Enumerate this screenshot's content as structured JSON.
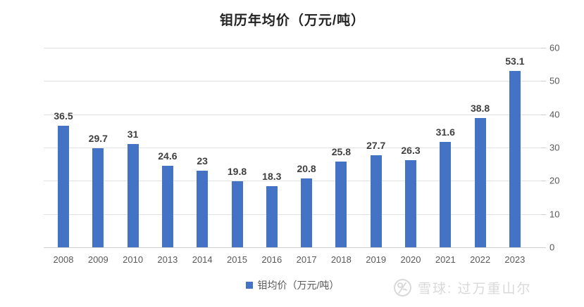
{
  "chart": {
    "title": "钼历年均价（万元/吨）",
    "legend_label": "钼均价（万元/吨）",
    "bar_color": "#4472C4",
    "gridline_color": "#e2e2e2",
    "axis_label_color": "#595959",
    "value_label_color": "#3f3f3f"
  },
  "watermark": {
    "text": "雪球: 过万重山尔",
    "logo": "xueqiu-snowball-logo"
  },
  "chart_data": {
    "type": "bar",
    "title": "钼历年均价（万元/吨）",
    "categories": [
      "2008",
      "2009",
      "2010",
      "2013",
      "2014",
      "2015",
      "2016",
      "2017",
      "2018",
      "2019",
      "2020",
      "2021",
      "2022",
      "2023"
    ],
    "values": [
      36.5,
      29.7,
      31,
      24.6,
      23,
      19.8,
      18.3,
      20.8,
      25.8,
      27.7,
      26.3,
      31.6,
      38.8,
      53.1
    ],
    "series_name": "钼均价（万元/吨）",
    "xlabel": "",
    "ylabel": "",
    "ylim": [
      0,
      60
    ],
    "yticks": [
      0,
      10,
      20,
      30,
      40,
      50,
      60
    ],
    "grid": true,
    "y_axis_side": "right",
    "value_labels": true,
    "legend_position": "bottom"
  }
}
